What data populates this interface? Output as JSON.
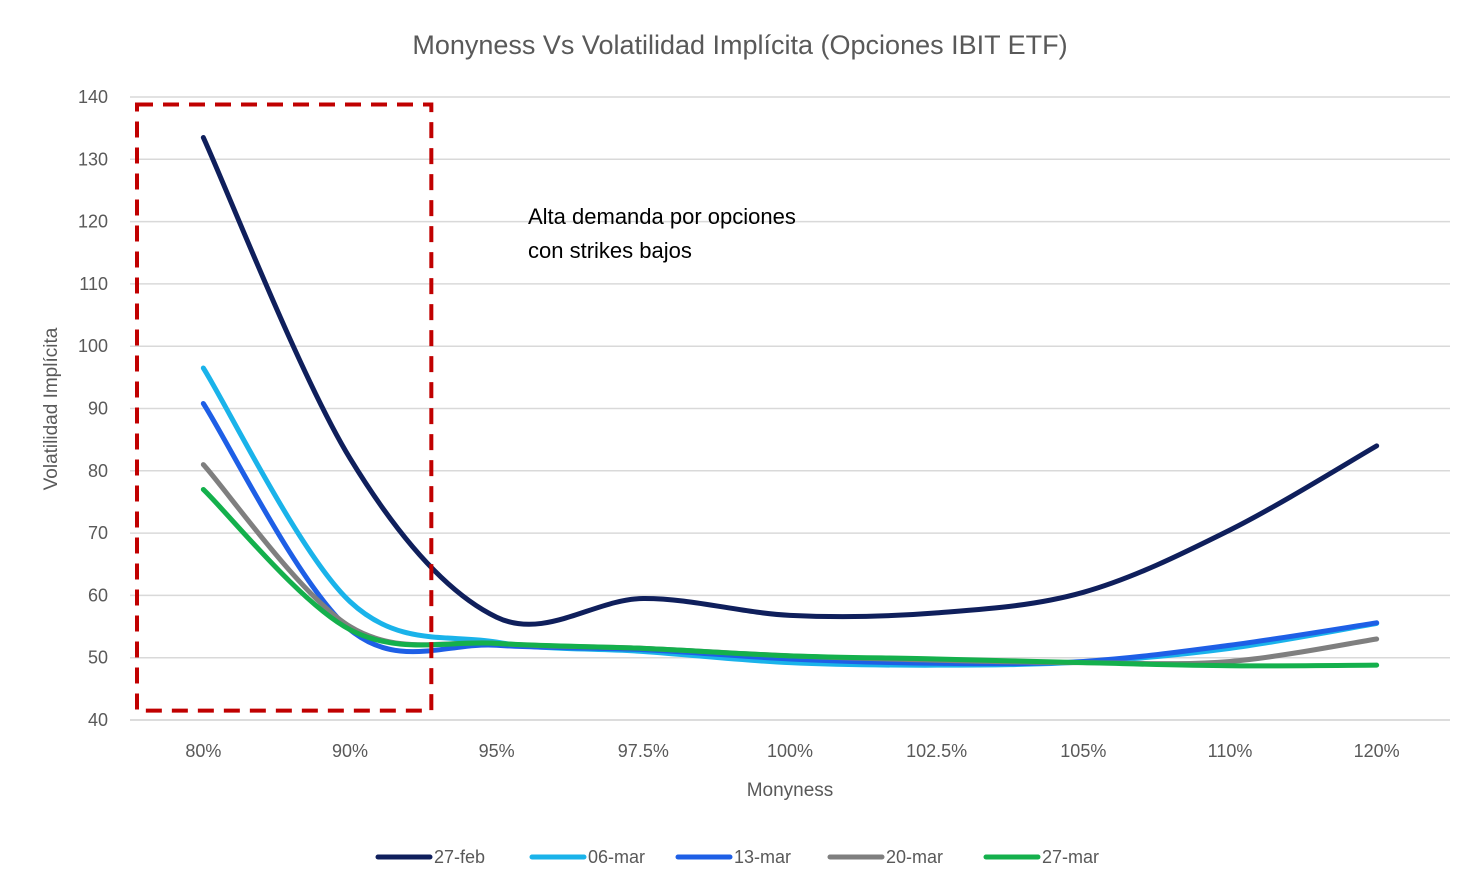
{
  "chart_data": {
    "type": "line",
    "title": "Monyness Vs Volatilidad Implícita (Opciones IBIT ETF)",
    "xlabel": "Monyness",
    "ylabel": "Volatilidad Implícita",
    "categories": [
      "80%",
      "90%",
      "95%",
      "97.5%",
      "100%",
      "102.5%",
      "105%",
      "110%",
      "120%"
    ],
    "ylim": [
      40,
      140
    ],
    "yticks": [
      40,
      50,
      60,
      70,
      80,
      90,
      100,
      110,
      120,
      130,
      140
    ],
    "grid": true,
    "legend_position": "bottom",
    "series": [
      {
        "name": "27-feb",
        "color": "#0f1f5c",
        "values": [
          133.5,
          82,
          56.5,
          59.5,
          56.8,
          57.2,
          60.5,
          70.5,
          84
        ]
      },
      {
        "name": "06-mar",
        "color": "#1ab3ea",
        "values": [
          96.5,
          59,
          52.5,
          51,
          49.2,
          48.8,
          49.3,
          51.5,
          55.5
        ]
      },
      {
        "name": "13-mar",
        "color": "#1e5fe6",
        "values": [
          90.8,
          54.5,
          52,
          51.3,
          49.8,
          49.1,
          49.4,
          52,
          55.6
        ]
      },
      {
        "name": "20-mar",
        "color": "#7f7f7f",
        "values": [
          81,
          55,
          52.3,
          51.5,
          50.3,
          49.6,
          49.2,
          49.4,
          53
        ]
      },
      {
        "name": "27-mar",
        "color": "#14b04c",
        "values": [
          77,
          54.5,
          52.3,
          51.5,
          50.3,
          49.8,
          49.2,
          48.7,
          48.8
        ]
      }
    ],
    "annotation": {
      "lines": [
        "Alta demanda por opciones",
        "con strikes bajos"
      ],
      "box_color": "#c00000",
      "box_category_range": [
        "80%",
        "95%"
      ],
      "box_y_range": [
        41.5,
        138.8
      ]
    }
  }
}
